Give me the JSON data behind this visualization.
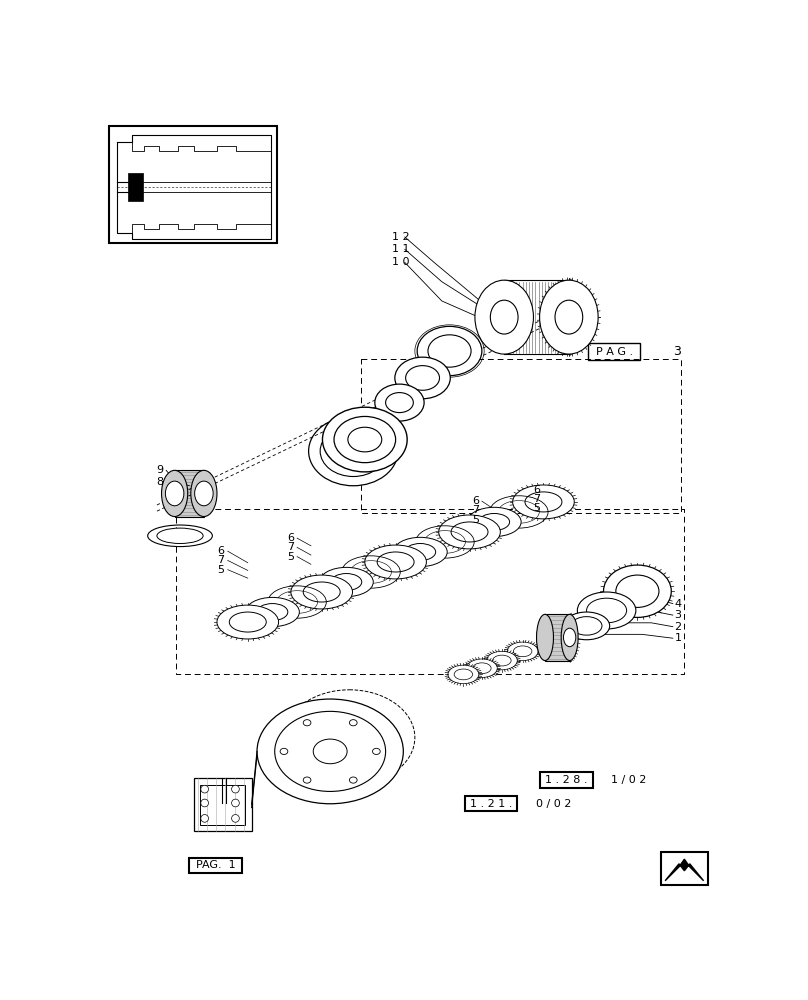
{
  "bg": "#ffffff",
  "lc": "#000000",
  "fig_w": 8.08,
  "fig_h": 10.0,
  "dpi": 100
}
